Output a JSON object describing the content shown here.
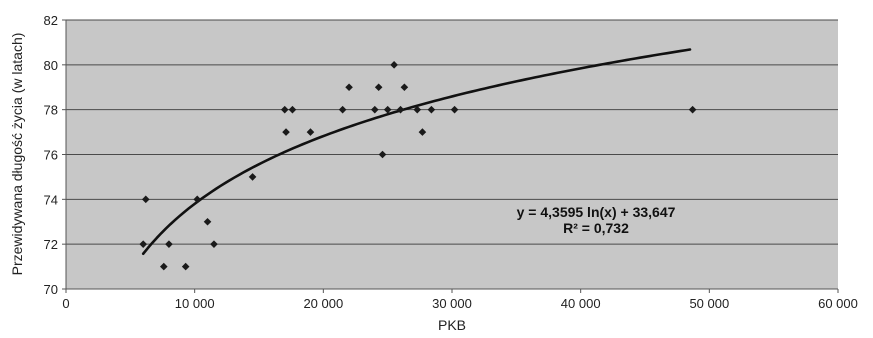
{
  "chart_data": {
    "type": "scatter",
    "title": "",
    "xlabel": "PKB",
    "ylabel": "Przewidywana długość życia (w latach)",
    "xlim": [
      0,
      60000
    ],
    "ylim": [
      70,
      82
    ],
    "grid": "horizontal",
    "x_ticks": [
      0,
      10000,
      20000,
      30000,
      40000,
      50000,
      60000
    ],
    "x_tick_labels": [
      "0",
      "10 000",
      "20 000",
      "30 000",
      "40 000",
      "50 000",
      "60 000"
    ],
    "y_ticks": [
      70,
      72,
      74,
      76,
      78,
      80,
      82
    ],
    "y_tick_labels": [
      "70",
      "72",
      "74",
      "76",
      "78",
      "80",
      "82"
    ],
    "series": [
      {
        "marker": "diamond",
        "points": [
          {
            "x": 6000,
            "y": 72
          },
          {
            "x": 6200,
            "y": 74
          },
          {
            "x": 7600,
            "y": 71
          },
          {
            "x": 8000,
            "y": 72
          },
          {
            "x": 9300,
            "y": 71
          },
          {
            "x": 10200,
            "y": 74
          },
          {
            "x": 11000,
            "y": 73
          },
          {
            "x": 11500,
            "y": 72
          },
          {
            "x": 14500,
            "y": 75
          },
          {
            "x": 17000,
            "y": 78
          },
          {
            "x": 17100,
            "y": 77
          },
          {
            "x": 17600,
            "y": 78
          },
          {
            "x": 19000,
            "y": 77
          },
          {
            "x": 21500,
            "y": 78
          },
          {
            "x": 22000,
            "y": 79
          },
          {
            "x": 24000,
            "y": 78
          },
          {
            "x": 24300,
            "y": 79
          },
          {
            "x": 24600,
            "y": 76
          },
          {
            "x": 25000,
            "y": 78
          },
          {
            "x": 25500,
            "y": 80
          },
          {
            "x": 26000,
            "y": 78
          },
          {
            "x": 26300,
            "y": 79
          },
          {
            "x": 27300,
            "y": 78
          },
          {
            "x": 27700,
            "y": 77
          },
          {
            "x": 28400,
            "y": 78
          },
          {
            "x": 30200,
            "y": 78
          },
          {
            "x": 48700,
            "y": 78
          }
        ]
      }
    ],
    "trendline": {
      "type": "logarithmic",
      "a": 4.3595,
      "b": 33.647,
      "x_from": 6000,
      "x_to": 48500
    },
    "annotations": {
      "equation": "y = 4,3595 ln(x) + 33,647",
      "r_squared": "R² = 0,732"
    },
    "colors": {
      "plot_background": "#c7c7c7",
      "marker": "#1a1a1a",
      "trendline": "#111111",
      "gridline": "#4a4a4a"
    }
  }
}
